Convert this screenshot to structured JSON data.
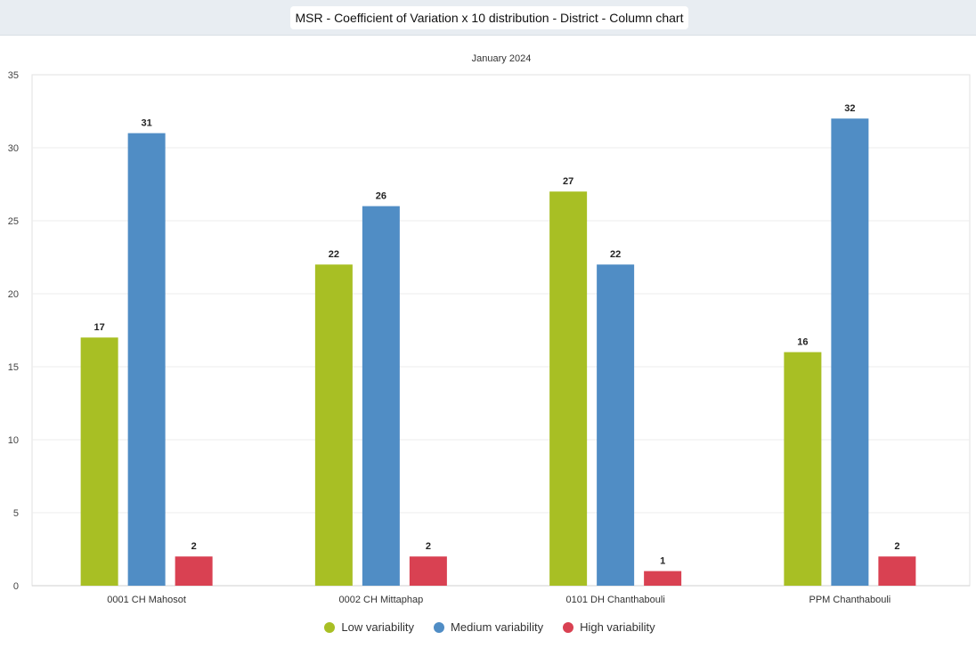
{
  "header": {
    "title": "MSR - Coefficient of Variation x 10 distribution - District - Column chart"
  },
  "chart_data": {
    "type": "bar",
    "subtitle": "January 2024",
    "categories": [
      "0001 CH Mahosot",
      "0002 CH Mittaphap",
      "0101 DH Chanthabouli",
      "PPM Chanthabouli"
    ],
    "series": [
      {
        "name": "Low variability",
        "color": "#a8bf24",
        "values": [
          17,
          22,
          27,
          16
        ]
      },
      {
        "name": "Medium variability",
        "color": "#508dc5",
        "values": [
          31,
          26,
          22,
          32
        ]
      },
      {
        "name": "High variability",
        "color": "#d94152",
        "values": [
          2,
          2,
          1,
          2
        ]
      }
    ],
    "ylim": [
      0,
      35
    ],
    "yticks": [
      0,
      5,
      10,
      15,
      20,
      25,
      30,
      35
    ],
    "grid": true,
    "legend": "bottom-center"
  }
}
